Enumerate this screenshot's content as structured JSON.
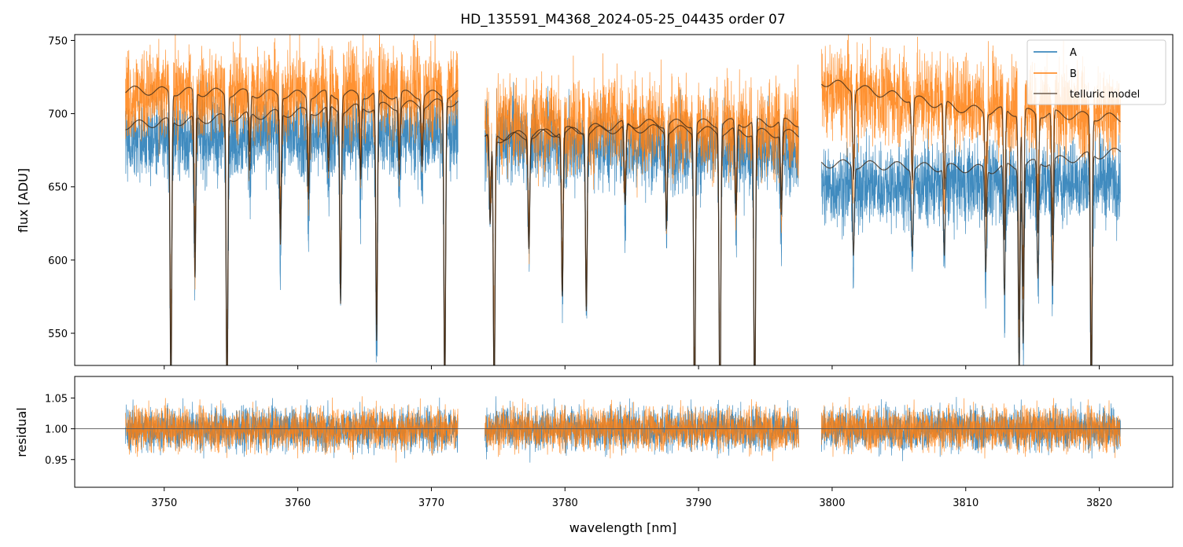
{
  "chart_data": {
    "type": "line",
    "title": "HD_135591_M4368_2024-05-25_04435  order 07",
    "xlabel": "wavelength [nm]",
    "x_ticks": [
      3750,
      3760,
      3770,
      3780,
      3790,
      3800,
      3810,
      3820
    ],
    "xlim": [
      3743.3,
      3825.5
    ],
    "segments": [
      [
        3747.1,
        3772.0
      ],
      [
        3774.0,
        3797.5
      ],
      [
        3799.2,
        3821.6
      ]
    ],
    "panels": [
      {
        "name": "flux",
        "ylabel": "flux [ADU]",
        "ylim": [
          528,
          754
        ],
        "y_ticks": [
          550,
          600,
          650,
          700,
          750
        ],
        "series": [
          {
            "name": "A",
            "color": "#1f77b4",
            "noise": 14,
            "baseline": [
              [
                3747.1,
                682
              ],
              [
                3772.0,
                687
              ],
              [
                3774.0,
                683
              ],
              [
                3797.5,
                672
              ],
              [
                3799.2,
                650
              ],
              [
                3821.6,
                655
              ]
            ]
          },
          {
            "name": "B",
            "color": "#ff7f0e",
            "noise": 16,
            "baseline": [
              [
                3747.1,
                712
              ],
              [
                3772.0,
                716
              ],
              [
                3774.0,
                695
              ],
              [
                3797.5,
                690
              ],
              [
                3799.2,
                715
              ],
              [
                3821.6,
                700
              ]
            ]
          }
        ],
        "telluric_model": {
          "name": "telluric model",
          "color": "#3b2a1a",
          "continua": [
            [
              [
                3747.1,
                692
              ],
              [
                3760.0,
                701
              ],
              [
                3772.0,
                708
              ],
              [
                3774.0,
                684
              ],
              [
                3785.0,
                690
              ],
              [
                3797.5,
                686
              ],
              [
                3799.2,
                666
              ],
              [
                3812.0,
                662
              ],
              [
                3821.6,
                674
              ]
            ],
            [
              [
                3747.1,
                716
              ],
              [
                3760.0,
                713
              ],
              [
                3772.0,
                713
              ],
              [
                3774.0,
                682
              ],
              [
                3785.0,
                693
              ],
              [
                3797.5,
                694
              ],
              [
                3799.2,
                722
              ],
              [
                3810.0,
                703
              ],
              [
                3821.6,
                697
              ]
            ]
          ]
        },
        "absorption_lines": [
          {
            "nm": 3750.5,
            "depth": 190
          },
          {
            "nm": 3752.3,
            "depth": 110
          },
          {
            "nm": 3754.7,
            "depth": 200
          },
          {
            "nm": 3756.4,
            "depth": 40
          },
          {
            "nm": 3758.7,
            "depth": 90
          },
          {
            "nm": 3760.8,
            "depth": 60
          },
          {
            "nm": 3762.3,
            "depth": 45
          },
          {
            "nm": 3763.2,
            "depth": 130
          },
          {
            "nm": 3764.7,
            "depth": 50
          },
          {
            "nm": 3765.9,
            "depth": 160
          },
          {
            "nm": 3767.6,
            "depth": 45
          },
          {
            "nm": 3769.3,
            "depth": 40
          },
          {
            "nm": 3771.0,
            "depth": 200
          },
          {
            "nm": 3774.4,
            "depth": 60
          },
          {
            "nm": 3774.7,
            "depth": 180
          },
          {
            "nm": 3777.3,
            "depth": 75
          },
          {
            "nm": 3779.8,
            "depth": 110
          },
          {
            "nm": 3781.6,
            "depth": 120
          },
          {
            "nm": 3784.5,
            "depth": 55
          },
          {
            "nm": 3787.6,
            "depth": 65
          },
          {
            "nm": 3789.7,
            "depth": 200
          },
          {
            "nm": 3791.6,
            "depth": 200
          },
          {
            "nm": 3792.8,
            "depth": 60
          },
          {
            "nm": 3794.2,
            "depth": 200
          },
          {
            "nm": 3796.2,
            "depth": 55
          },
          {
            "nm": 3801.6,
            "depth": 60
          },
          {
            "nm": 3806.0,
            "depth": 55
          },
          {
            "nm": 3808.4,
            "depth": 60
          },
          {
            "nm": 3811.5,
            "depth": 70
          },
          {
            "nm": 3812.9,
            "depth": 90
          },
          {
            "nm": 3814.0,
            "depth": 140
          },
          {
            "nm": 3814.3,
            "depth": 120
          },
          {
            "nm": 3815.4,
            "depth": 80
          },
          {
            "nm": 3816.5,
            "depth": 85
          },
          {
            "nm": 3819.4,
            "depth": 180
          }
        ]
      },
      {
        "name": "residual",
        "ylabel": "residual",
        "ylim": [
          0.905,
          1.085
        ],
        "y_ticks": [
          0.95,
          1.0,
          1.05
        ],
        "y_tick_labels": [
          "0.95",
          "1.00",
          "1.05"
        ],
        "reference_line": 1.0,
        "series": [
          {
            "name": "A",
            "color": "#1f77b4",
            "noise": 0.032
          },
          {
            "name": "B",
            "color": "#ff7f0e",
            "noise": 0.032
          }
        ]
      }
    ],
    "legend": {
      "position": "top-right",
      "entries": [
        {
          "label": "A",
          "color": "#1f77b4"
        },
        {
          "label": "B",
          "color": "#ff7f0e"
        },
        {
          "label": "telluric model",
          "color": "#3b2a1a"
        }
      ]
    }
  }
}
